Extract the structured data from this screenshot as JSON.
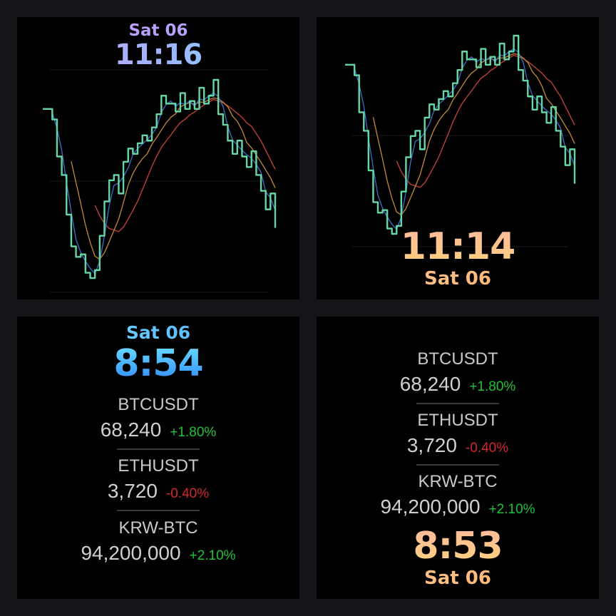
{
  "panels": [
    {
      "date": "Sat 06",
      "time": "11:16"
    },
    {
      "date": "Sat 06",
      "time": "11:14"
    },
    {
      "date": "Sat 06",
      "time": "8:54"
    },
    {
      "date": "Sat 06",
      "time": "8:53"
    }
  ],
  "tickers": [
    {
      "symbol": "BTCUSDT",
      "price": "68,240",
      "change": "+1.80%",
      "direction": "up"
    },
    {
      "symbol": "ETHUSDT",
      "price": "3,720",
      "change": "-0.40%",
      "direction": "down"
    },
    {
      "symbol": "KRW-BTC",
      "price": "94,200,000",
      "change": "+2.10%",
      "direction": "up"
    }
  ],
  "colors": {
    "up": "#1fc23a",
    "down": "#d4272e",
    "price_line": "#66d6a5",
    "ma_fast": "#3f6ec8",
    "ma_mid": "#c68a34",
    "ma_slow": "#c84436"
  },
  "chart_data": {
    "type": "line",
    "series": [
      {
        "values": [
          70,
          70,
          66,
          52,
          45,
          30,
          18,
          14,
          15,
          8,
          6,
          9,
          22,
          35,
          43,
          45,
          38,
          50,
          55,
          53,
          57,
          60,
          58,
          63,
          68,
          75,
          72,
          72,
          69,
          76,
          70,
          73,
          70,
          78,
          72,
          75,
          81,
          68,
          64,
          58,
          53,
          58,
          52,
          48,
          54,
          45,
          39,
          32,
          38,
          25
        ]
      }
    ]
  }
}
